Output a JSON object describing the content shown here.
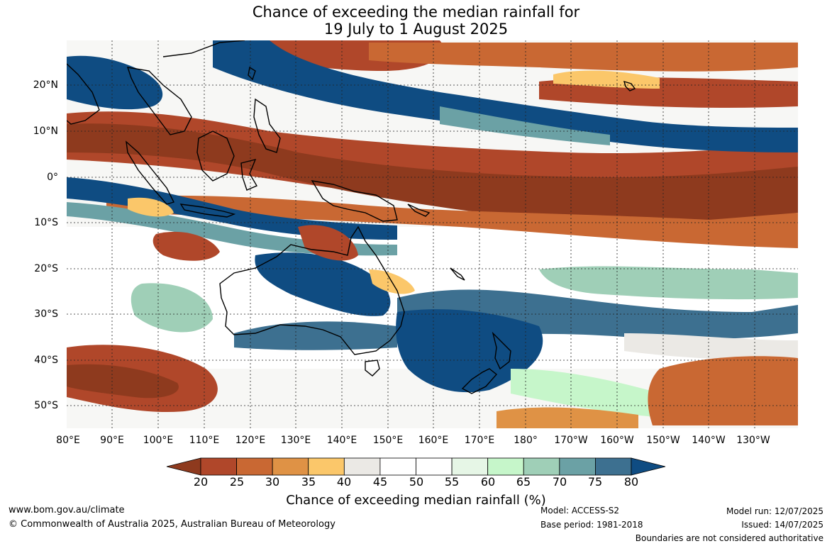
{
  "title": {
    "line1": "Chance of exceeding the median rainfall for",
    "line2": "19 July to 1 August 2025"
  },
  "map": {
    "lat_labels": [
      "20°N",
      "10°N",
      "0°",
      "10°S",
      "20°S",
      "30°S",
      "40°S",
      "50°S"
    ],
    "lon_labels": [
      "80°E",
      "90°E",
      "100°E",
      "110°E",
      "120°E",
      "130°E",
      "140°E",
      "150°E",
      "160°E",
      "170°E",
      "180°",
      "170°W",
      "160°W",
      "150°W",
      "140°W",
      "130°W"
    ],
    "gridlines": true,
    "gridline_style": "dotted"
  },
  "colorbar": {
    "ticks": [
      "20",
      "25",
      "30",
      "35",
      "40",
      "45",
      "50",
      "55",
      "60",
      "65",
      "70",
      "75",
      "80"
    ],
    "colors": [
      "#8e3a1e",
      "#b0472a",
      "#c96833",
      "#df9245",
      "#fbc76a",
      "#ebe9e5",
      "#ffffff",
      "#ffffff",
      "#e6f6e6",
      "#c6f6ca",
      "#9fcfb7",
      "#6ba1a5",
      "#3d7090",
      "#0f4c82"
    ],
    "label": "Chance of exceeding median rainfall (%)"
  },
  "footer": {
    "url": "www.bom.gov.au/climate",
    "copyright": "© Commonwealth of Australia 2025, Australian Bureau of Meteorology",
    "model": "Model: ACCESS-S2",
    "base_period": "Base period: 1981-2018",
    "model_run": "Model run: 12/07/2025",
    "issued": "Issued: 14/07/2025",
    "disclaimer": "Boundaries are not considered authoritative"
  }
}
